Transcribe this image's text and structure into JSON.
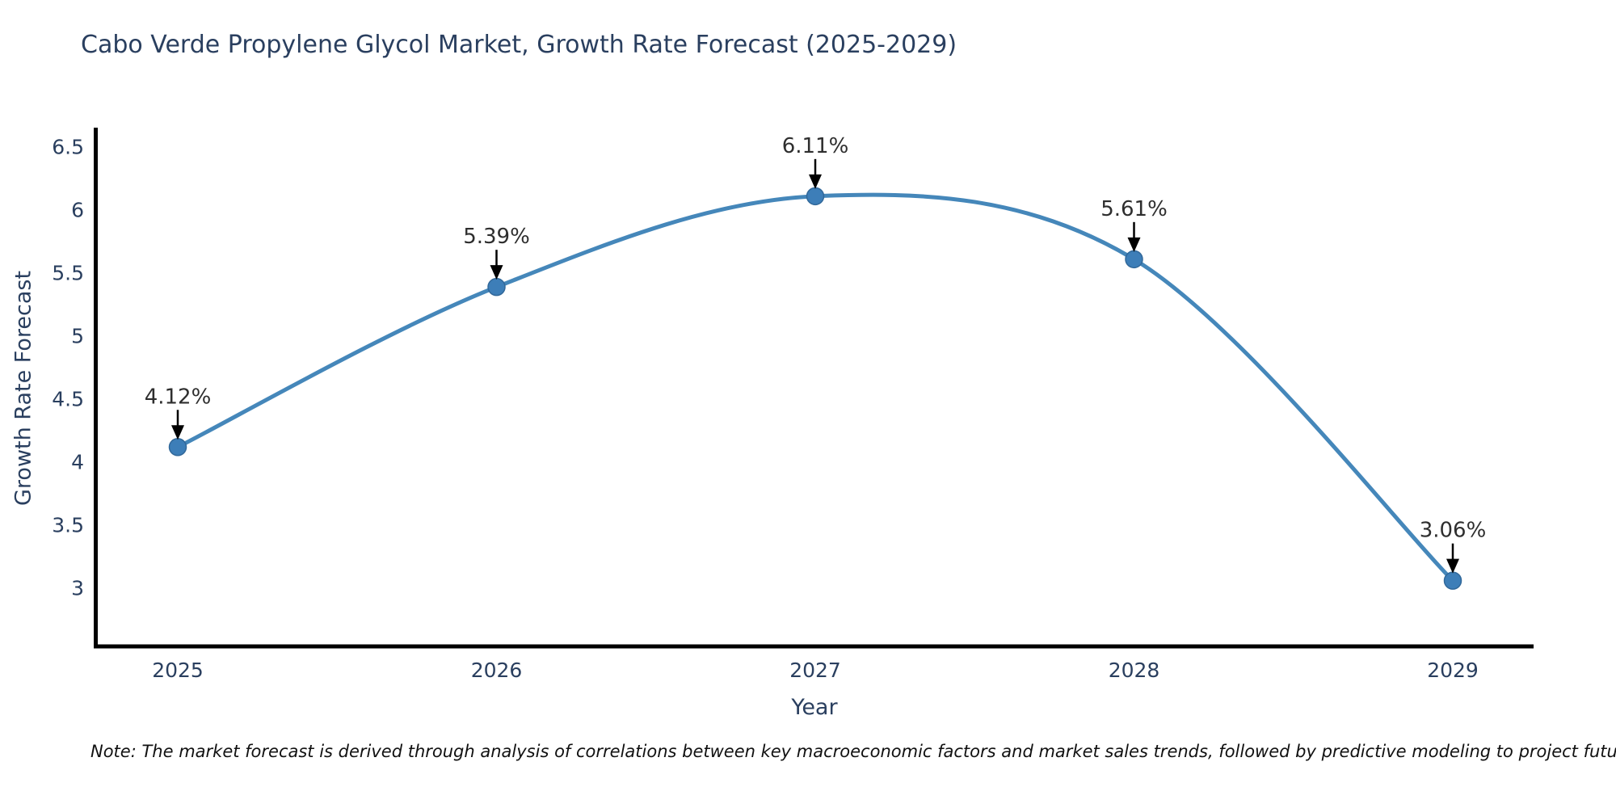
{
  "note": "Note: The market forecast is derived through analysis of correlations between key macroeconomic factors and market sales trends, followed by predictive modeling to project future sales",
  "chart_data": {
    "type": "line",
    "title": "Cabo Verde Propylene Glycol Market, Growth Rate Forecast (2025-2029)",
    "xlabel": "Year",
    "ylabel": "Growth Rate Forecast",
    "x": [
      2025,
      2026,
      2027,
      2028,
      2029
    ],
    "values": [
      4.12,
      5.39,
      6.11,
      5.61,
      3.06
    ],
    "point_labels": [
      "4.12%",
      "5.39%",
      "6.11%",
      "5.61%",
      "3.06%"
    ],
    "yticks": [
      3,
      3.5,
      4,
      4.5,
      5,
      5.5,
      6,
      6.5
    ],
    "ylim": [
      2.53,
      6.65
    ],
    "line_shape": "spline",
    "grid": false,
    "legend": "none",
    "colors": {
      "line": "#4587ba",
      "marker_fill": "#3d7eb8",
      "marker_edge": "#31689a",
      "axis_line": "#000000",
      "axis_text": "#2a3f5f",
      "annotation_text": "#2e2e2e",
      "arrow": "#000000",
      "background": "#ffffff"
    }
  }
}
